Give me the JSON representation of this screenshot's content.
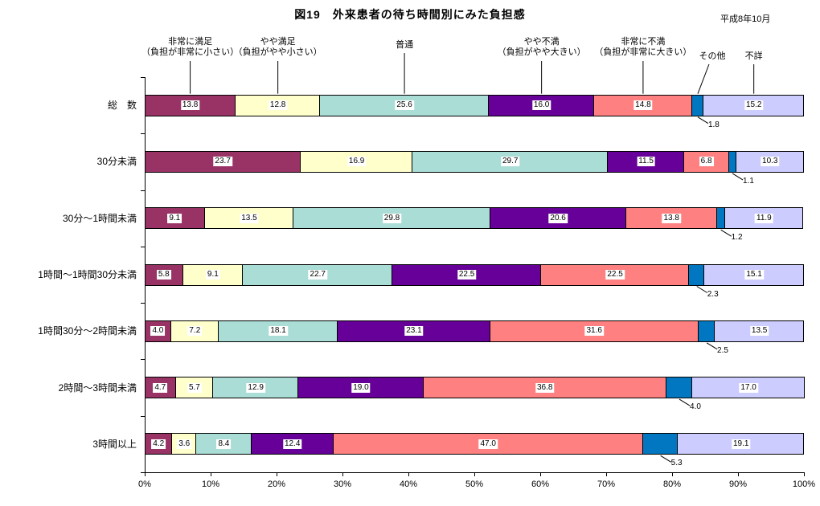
{
  "title": "図19　外来患者の待ち時間別にみた負担感",
  "date_note": "平成8年10月",
  "chart_data": {
    "type": "bar",
    "stacked": true,
    "orientation": "horizontal",
    "unit": "%",
    "value_label_style": "one decimal, white box on segment; その他 series labeled below bar with leader line",
    "categories": [
      "総　数",
      "30分未満",
      "30分～1時間未満",
      "1時間～1時間30分未満",
      "1時間30分～2時間未満",
      "2時間～3時間未満",
      "3時間以上"
    ],
    "series": [
      {
        "name": "非常に満足",
        "sub": "（負担が非常に小さい）",
        "color": "#993366",
        "values": [
          13.8,
          23.7,
          9.1,
          5.8,
          4.0,
          4.7,
          4.2
        ]
      },
      {
        "name": "やや満足",
        "sub": "（負担がやや小さい）",
        "color": "#FFFFCC",
        "values": [
          12.8,
          16.9,
          13.5,
          9.1,
          7.2,
          5.7,
          3.6
        ]
      },
      {
        "name": "普通",
        "sub": "",
        "color": "#AADDD6",
        "values": [
          25.6,
          29.7,
          29.8,
          22.7,
          18.1,
          12.9,
          8.4
        ]
      },
      {
        "name": "やや不満",
        "sub": "（負担がやや大きい）",
        "color": "#660099",
        "values": [
          16.0,
          11.5,
          20.6,
          22.5,
          23.1,
          19.0,
          12.4
        ]
      },
      {
        "name": "非常に不満",
        "sub": "（負担が非常に大きい）",
        "color": "#FF8080",
        "values": [
          14.8,
          6.8,
          13.8,
          22.5,
          31.6,
          36.8,
          47.0
        ]
      },
      {
        "name": "その他",
        "sub": "",
        "color": "#0077C0",
        "callout": true,
        "values": [
          1.8,
          1.1,
          1.2,
          2.3,
          2.5,
          4.0,
          5.3
        ]
      },
      {
        "name": "不詳",
        "sub": "",
        "color": "#CCCCFF",
        "values": [
          15.2,
          10.3,
          11.9,
          15.1,
          13.5,
          17.0,
          19.1
        ]
      }
    ],
    "x_axis": {
      "min": 0,
      "max": 100,
      "tick_step": 10,
      "tick_labels": [
        "0%",
        "10%",
        "20%",
        "30%",
        "40%",
        "50%",
        "60%",
        "70%",
        "80%",
        "90%",
        "100%"
      ]
    },
    "grid": false,
    "legend_position": "labels above chart pointing to first bar segments"
  }
}
